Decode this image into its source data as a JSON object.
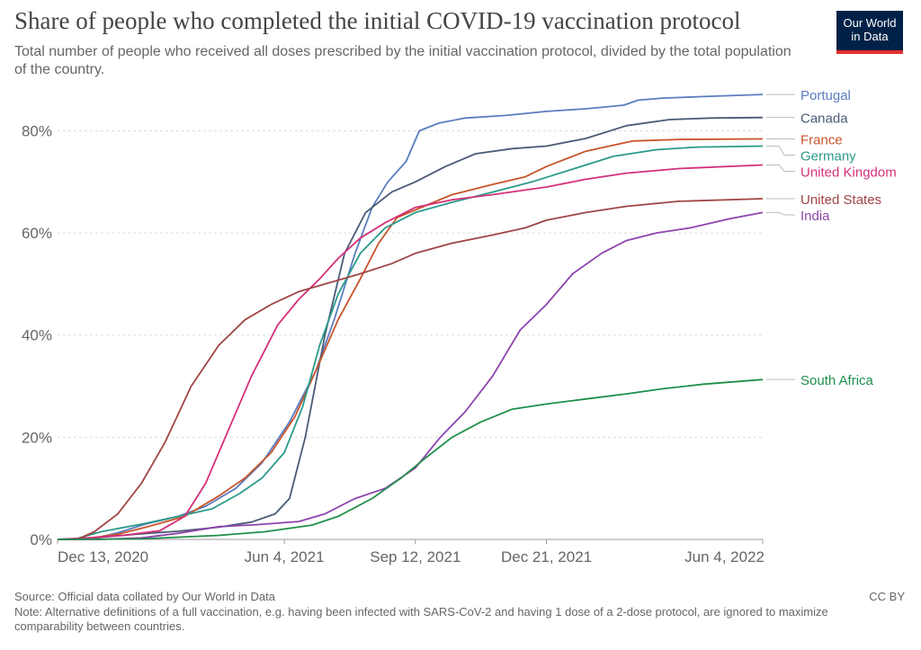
{
  "header": {
    "title": "Share of people who completed the initial COVID-19 vaccination protocol",
    "subtitle": "Total number of people who received all doses prescribed by the initial vaccination protocol, divided by the total population of the country.",
    "logo_line1": "Our World",
    "logo_line2": "in Data"
  },
  "footer": {
    "source": "Source: Official data collated by Our World in Data",
    "note": "Note: Alternative definitions of a full vaccination, e.g. having been infected with SARS-CoV-2 and having 1 dose of a 2-dose protocol, are ignored to maximize comparability between countries.",
    "license": "CC BY"
  },
  "chart_data": {
    "type": "line",
    "x_start": "2020-12-13",
    "x_end": "2022-06-04",
    "x_ticks": [
      {
        "date": "2020-12-13",
        "label": "Dec 13, 2020"
      },
      {
        "date": "2021-06-04",
        "label": "Jun 4, 2021"
      },
      {
        "date": "2021-09-12",
        "label": "Sep 12, 2021"
      },
      {
        "date": "2021-12-21",
        "label": "Dec 21, 2021"
      },
      {
        "date": "2022-06-04",
        "label": "Jun 4, 2022"
      }
    ],
    "ylim": [
      0,
      88
    ],
    "y_ticks": [
      0,
      20,
      40,
      60,
      80
    ],
    "y_tick_labels": [
      "0%",
      "20%",
      "40%",
      "60%",
      "80%"
    ],
    "grid": true,
    "legend": "right, labels at line ends",
    "series": [
      {
        "name": "Portugal",
        "color": "#5a7dbf",
        "x": [
          "2020-12-13",
          "2020-12-28",
          "2021-01-10",
          "2021-01-28",
          "2021-02-18",
          "2021-03-15",
          "2021-04-05",
          "2021-04-28",
          "2021-05-18",
          "2021-06-08",
          "2021-06-28",
          "2021-07-12",
          "2021-07-28",
          "2021-08-10",
          "2021-08-22",
          "2021-09-05",
          "2021-09-15",
          "2021-09-30",
          "2021-10-20",
          "2021-11-20",
          "2021-12-21",
          "2022-01-20",
          "2022-02-18",
          "2022-03-01",
          "2022-03-20",
          "2022-04-20",
          "2022-06-04"
        ],
        "y": [
          0,
          0,
          0.2,
          1.3,
          3,
          4.5,
          6.5,
          10,
          15,
          23,
          33,
          43,
          56,
          65,
          70,
          74,
          80,
          81.5,
          82.5,
          83,
          83.8,
          84.3,
          85,
          86,
          86.4,
          86.7,
          87.1
        ]
      },
      {
        "name": "Canada",
        "color": "#4a5a75",
        "x": [
          "2020-12-13",
          "2021-01-10",
          "2021-02-10",
          "2021-03-15",
          "2021-04-15",
          "2021-05-10",
          "2021-05-28",
          "2021-06-08",
          "2021-06-20",
          "2021-07-05",
          "2021-07-20",
          "2021-08-05",
          "2021-08-25",
          "2021-09-12",
          "2021-10-05",
          "2021-10-28",
          "2021-11-25",
          "2021-12-21",
          "2022-01-20",
          "2022-02-20",
          "2022-03-25",
          "2022-04-25",
          "2022-06-04"
        ],
        "y": [
          0,
          0.3,
          1,
          1.6,
          2.4,
          3.4,
          5,
          8,
          20,
          40,
          56,
          64,
          68,
          70,
          73,
          75.5,
          76.5,
          77,
          78.5,
          81,
          82.2,
          82.5,
          82.6
        ]
      },
      {
        "name": "France",
        "color": "#c8542a",
        "x": [
          "2020-12-13",
          "2021-01-05",
          "2021-01-28",
          "2021-02-20",
          "2021-03-20",
          "2021-04-15",
          "2021-05-05",
          "2021-05-25",
          "2021-06-12",
          "2021-06-28",
          "2021-07-15",
          "2021-08-01",
          "2021-08-15",
          "2021-08-29",
          "2021-09-12",
          "2021-10-10",
          "2021-11-10",
          "2021-12-05",
          "2021-12-21",
          "2022-01-20",
          "2022-02-25",
          "2022-04-01",
          "2022-06-04"
        ],
        "y": [
          0,
          0.2,
          1,
          2.5,
          4.5,
          8.5,
          12,
          17,
          24,
          33,
          43,
          51,
          58,
          63,
          64.5,
          67.5,
          69.5,
          71,
          73,
          76,
          78,
          78.3,
          78.4
        ]
      },
      {
        "name": "Germany",
        "color": "#2a9a8a",
        "x": [
          "2020-12-13",
          "2020-12-28",
          "2021-01-15",
          "2021-02-15",
          "2021-03-15",
          "2021-04-10",
          "2021-05-01",
          "2021-05-18",
          "2021-06-04",
          "2021-06-18",
          "2021-07-01",
          "2021-07-15",
          "2021-08-01",
          "2021-08-20",
          "2021-09-12",
          "2021-10-10",
          "2021-11-10",
          "2021-12-10",
          "2022-01-10",
          "2022-02-10",
          "2022-03-15",
          "2022-04-15",
          "2022-06-04"
        ],
        "y": [
          0,
          0.2,
          1.5,
          3,
          4.5,
          6,
          9,
          12,
          17,
          26,
          38,
          48,
          56,
          61,
          64,
          66,
          68,
          70,
          72.5,
          75,
          76.3,
          76.8,
          77
        ]
      },
      {
        "name": "United Kingdom",
        "color": "#d4307a",
        "x": [
          "2020-12-13",
          "2021-01-05",
          "2021-02-01",
          "2021-03-01",
          "2021-03-20",
          "2021-04-05",
          "2021-04-20",
          "2021-05-10",
          "2021-05-30",
          "2021-06-15",
          "2021-07-01",
          "2021-07-15",
          "2021-08-01",
          "2021-08-20",
          "2021-09-12",
          "2021-10-10",
          "2021-11-10",
          "2021-12-21",
          "2022-01-20",
          "2022-02-20",
          "2022-04-01",
          "2022-06-04"
        ],
        "y": [
          0,
          0.3,
          0.8,
          1.7,
          4.5,
          11,
          20,
          32,
          42,
          47,
          51,
          55,
          59,
          62,
          65,
          66.5,
          67.5,
          69,
          70.5,
          71.7,
          72.6,
          73.3
        ]
      },
      {
        "name": "United States",
        "color": "#a04545",
        "x": [
          "2020-12-13",
          "2020-12-28",
          "2021-01-10",
          "2021-01-28",
          "2021-02-15",
          "2021-03-05",
          "2021-03-25",
          "2021-04-15",
          "2021-05-05",
          "2021-05-25",
          "2021-06-15",
          "2021-07-05",
          "2021-08-01",
          "2021-08-25",
          "2021-09-12",
          "2021-10-10",
          "2021-11-10",
          "2021-12-05",
          "2021-12-21",
          "2022-01-20",
          "2022-02-20",
          "2022-04-01",
          "2022-06-04"
        ],
        "y": [
          0,
          0,
          1.5,
          5,
          11,
          19,
          30,
          38,
          43,
          46,
          48.5,
          50,
          52,
          54,
          56,
          58,
          59.6,
          61,
          62.5,
          64,
          65.2,
          66.2,
          66.7
        ]
      },
      {
        "name": "India",
        "color": "#8e44ad",
        "x": [
          "2020-12-13",
          "2021-01-15",
          "2021-02-15",
          "2021-03-15",
          "2021-04-15",
          "2021-05-15",
          "2021-06-15",
          "2021-07-05",
          "2021-07-28",
          "2021-08-20",
          "2021-09-12",
          "2021-10-01",
          "2021-10-20",
          "2021-11-10",
          "2021-12-01",
          "2021-12-21",
          "2022-01-10",
          "2022-02-01",
          "2022-02-20",
          "2022-03-15",
          "2022-04-10",
          "2022-05-10",
          "2022-06-04"
        ],
        "y": [
          0,
          0,
          0.3,
          1.2,
          2.5,
          2.9,
          3.5,
          5,
          8,
          10,
          14,
          20,
          25,
          32,
          41,
          46,
          52,
          56,
          58.5,
          60,
          61,
          62.8,
          64
        ]
      },
      {
        "name": "South Africa",
        "color": "#1f8f4a",
        "x": [
          "2020-12-13",
          "2021-02-15",
          "2021-04-15",
          "2021-05-20",
          "2021-06-25",
          "2021-07-15",
          "2021-08-10",
          "2021-09-01",
          "2021-09-20",
          "2021-10-10",
          "2021-11-01",
          "2021-11-25",
          "2021-12-21",
          "2022-01-20",
          "2022-02-20",
          "2022-03-20",
          "2022-04-20",
          "2022-06-04"
        ],
        "y": [
          0,
          0.1,
          0.8,
          1.5,
          2.8,
          4.5,
          8,
          12,
          16,
          20,
          23,
          25.5,
          26.5,
          27.5,
          28.5,
          29.5,
          30.4,
          31.3
        ]
      }
    ]
  }
}
